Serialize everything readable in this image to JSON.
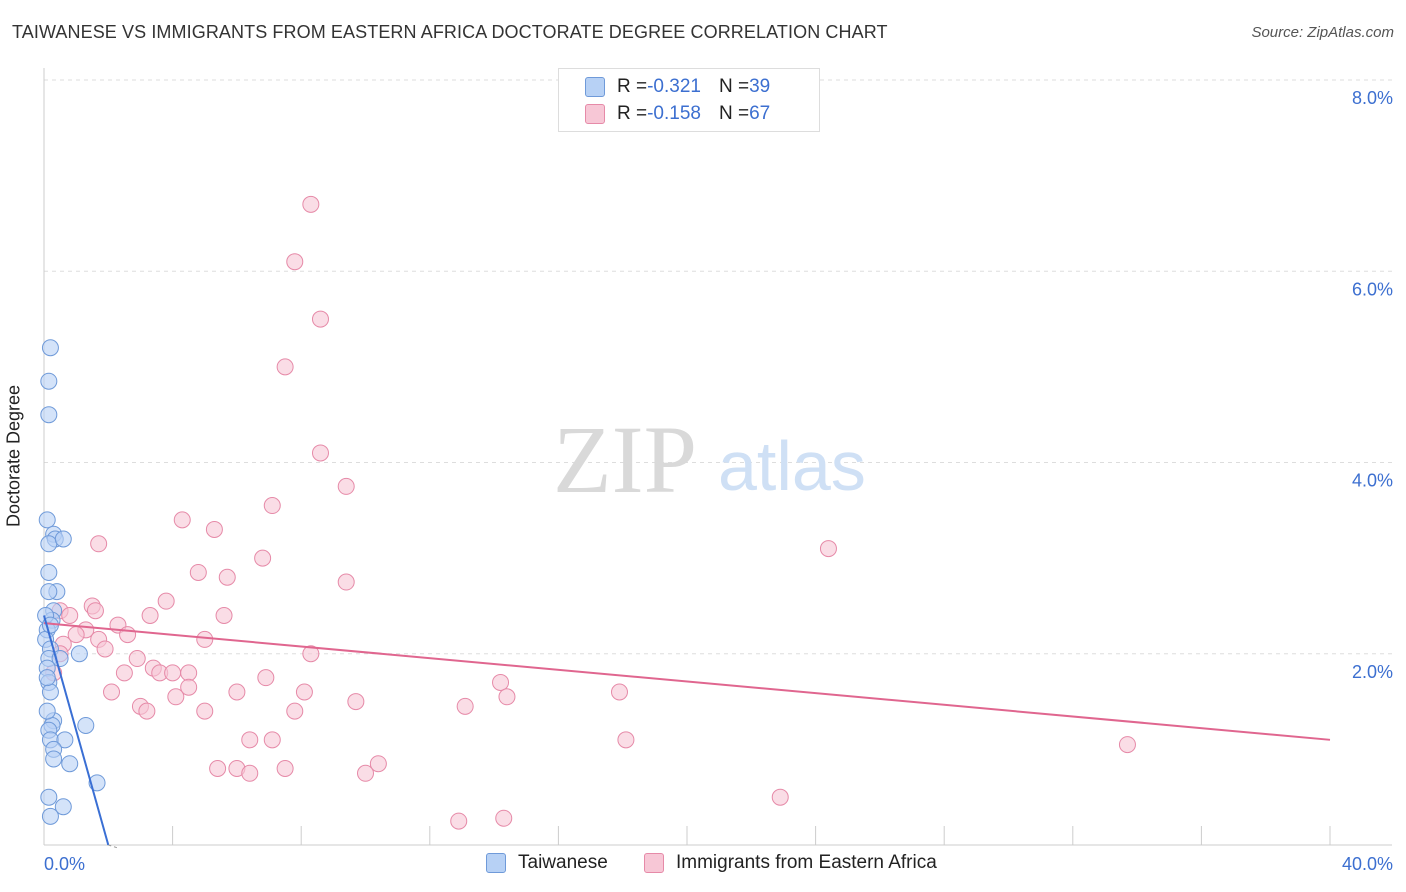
{
  "title": "TAIWANESE VS IMMIGRANTS FROM EASTERN AFRICA DOCTORATE DEGREE CORRELATION CHART",
  "source": "Source: ZipAtlas.com",
  "watermark": {
    "left": "ZIP",
    "right": "atlas"
  },
  "legend": {
    "rows": [
      {
        "r_label": "R = ",
        "r_value": "-0.321",
        "n_label": "N = ",
        "n_value": "39"
      },
      {
        "r_label": "R = ",
        "r_value": "-0.158",
        "n_label": "N = ",
        "n_value": "67"
      }
    ]
  },
  "bottom_legend": [
    "Taiwanese",
    "Immigrants from Eastern Africa"
  ],
  "colors": {
    "series1_fill": "#b7d1f5",
    "series1_stroke": "#6f9ad9",
    "series1_line": "#3a6fd4",
    "series2_fill": "#f7c7d6",
    "series2_stroke": "#e68aa8",
    "series2_line": "#e0668f",
    "grid": "#dddddd",
    "axis": "#cccccc",
    "tick_text": "#3c6fd0"
  },
  "chart_data": {
    "type": "scatter",
    "title": "TAIWANESE VS IMMIGRANTS FROM EASTERN AFRICA DOCTORATE DEGREE CORRELATION CHART",
    "xlabel": "",
    "ylabel": "Doctorate Degree",
    "xlim": [
      0,
      40
    ],
    "ylim": [
      0,
      8
    ],
    "x_tick_labels": [
      "0.0%",
      "40.0%"
    ],
    "y_ticks": [
      2,
      4,
      6,
      8
    ],
    "y_tick_labels": [
      "2.0%",
      "4.0%",
      "6.0%",
      "8.0%"
    ],
    "grid": true,
    "legend_position": "top-center",
    "series": [
      {
        "name": "Taiwanese",
        "R": -0.321,
        "N": 39,
        "trend": {
          "x": [
            0.0,
            2.0
          ],
          "y": [
            2.4,
            0.0
          ]
        },
        "trend_dashed_end": [
          2.3,
          -0.3
        ],
        "points": [
          [
            0.2,
            5.2
          ],
          [
            0.15,
            4.85
          ],
          [
            0.15,
            4.5
          ],
          [
            0.1,
            3.4
          ],
          [
            0.3,
            3.25
          ],
          [
            0.35,
            3.2
          ],
          [
            0.15,
            3.15
          ],
          [
            0.6,
            3.2
          ],
          [
            0.15,
            2.85
          ],
          [
            0.4,
            2.65
          ],
          [
            0.15,
            2.65
          ],
          [
            0.3,
            2.45
          ],
          [
            0.25,
            2.35
          ],
          [
            0.1,
            2.25
          ],
          [
            0.05,
            2.15
          ],
          [
            0.2,
            2.05
          ],
          [
            0.15,
            1.95
          ],
          [
            0.5,
            1.95
          ],
          [
            1.1,
            2.0
          ],
          [
            0.1,
            1.85
          ],
          [
            0.15,
            1.7
          ],
          [
            0.2,
            1.6
          ],
          [
            0.3,
            1.3
          ],
          [
            0.25,
            1.25
          ],
          [
            1.3,
            1.25
          ],
          [
            0.15,
            1.2
          ],
          [
            0.2,
            1.1
          ],
          [
            0.65,
            1.1
          ],
          [
            0.3,
            1.0
          ],
          [
            0.3,
            0.9
          ],
          [
            0.8,
            0.85
          ],
          [
            1.65,
            0.65
          ],
          [
            0.15,
            0.5
          ],
          [
            0.6,
            0.4
          ],
          [
            0.2,
            0.3
          ],
          [
            0.1,
            1.4
          ],
          [
            0.05,
            2.4
          ],
          [
            0.1,
            1.75
          ],
          [
            0.2,
            2.3
          ]
        ]
      },
      {
        "name": "Immigrants from Eastern Africa",
        "R": -0.158,
        "N": 67,
        "trend": {
          "x": [
            0.0,
            40.0
          ],
          "y": [
            2.32,
            1.1
          ]
        },
        "points": [
          [
            8.3,
            6.7
          ],
          [
            7.8,
            6.1
          ],
          [
            8.6,
            5.5
          ],
          [
            7.5,
            5.0
          ],
          [
            8.6,
            4.1
          ],
          [
            9.4,
            3.75
          ],
          [
            7.1,
            3.55
          ],
          [
            4.3,
            3.4
          ],
          [
            5.3,
            3.3
          ],
          [
            1.7,
            3.15
          ],
          [
            24.4,
            3.1
          ],
          [
            6.8,
            3.0
          ],
          [
            4.8,
            2.85
          ],
          [
            5.7,
            2.8
          ],
          [
            9.4,
            2.75
          ],
          [
            3.8,
            2.55
          ],
          [
            0.5,
            2.45
          ],
          [
            1.5,
            2.5
          ],
          [
            1.6,
            2.45
          ],
          [
            3.3,
            2.4
          ],
          [
            5.6,
            2.4
          ],
          [
            2.3,
            2.3
          ],
          [
            1.3,
            2.25
          ],
          [
            1.0,
            2.2
          ],
          [
            2.6,
            2.2
          ],
          [
            1.7,
            2.15
          ],
          [
            5.0,
            2.15
          ],
          [
            0.6,
            2.1
          ],
          [
            1.9,
            2.05
          ],
          [
            8.3,
            2.0
          ],
          [
            2.9,
            1.95
          ],
          [
            3.4,
            1.85
          ],
          [
            3.6,
            1.8
          ],
          [
            4.0,
            1.8
          ],
          [
            4.5,
            1.8
          ],
          [
            2.5,
            1.8
          ],
          [
            6.9,
            1.75
          ],
          [
            14.2,
            1.7
          ],
          [
            4.5,
            1.65
          ],
          [
            2.1,
            1.6
          ],
          [
            6.0,
            1.6
          ],
          [
            8.1,
            1.6
          ],
          [
            4.1,
            1.55
          ],
          [
            14.4,
            1.55
          ],
          [
            17.9,
            1.6
          ],
          [
            9.7,
            1.5
          ],
          [
            3.0,
            1.45
          ],
          [
            3.2,
            1.4
          ],
          [
            5.0,
            1.4
          ],
          [
            13.1,
            1.45
          ],
          [
            7.8,
            1.4
          ],
          [
            6.4,
            1.1
          ],
          [
            7.1,
            1.1
          ],
          [
            18.1,
            1.1
          ],
          [
            33.7,
            1.05
          ],
          [
            5.4,
            0.8
          ],
          [
            6.0,
            0.8
          ],
          [
            7.5,
            0.8
          ],
          [
            10.4,
            0.85
          ],
          [
            6.4,
            0.75
          ],
          [
            10.0,
            0.75
          ],
          [
            22.9,
            0.5
          ],
          [
            12.9,
            0.25
          ],
          [
            14.3,
            0.28
          ],
          [
            0.3,
            1.8
          ],
          [
            0.8,
            2.4
          ],
          [
            0.5,
            2.0
          ]
        ]
      }
    ]
  }
}
